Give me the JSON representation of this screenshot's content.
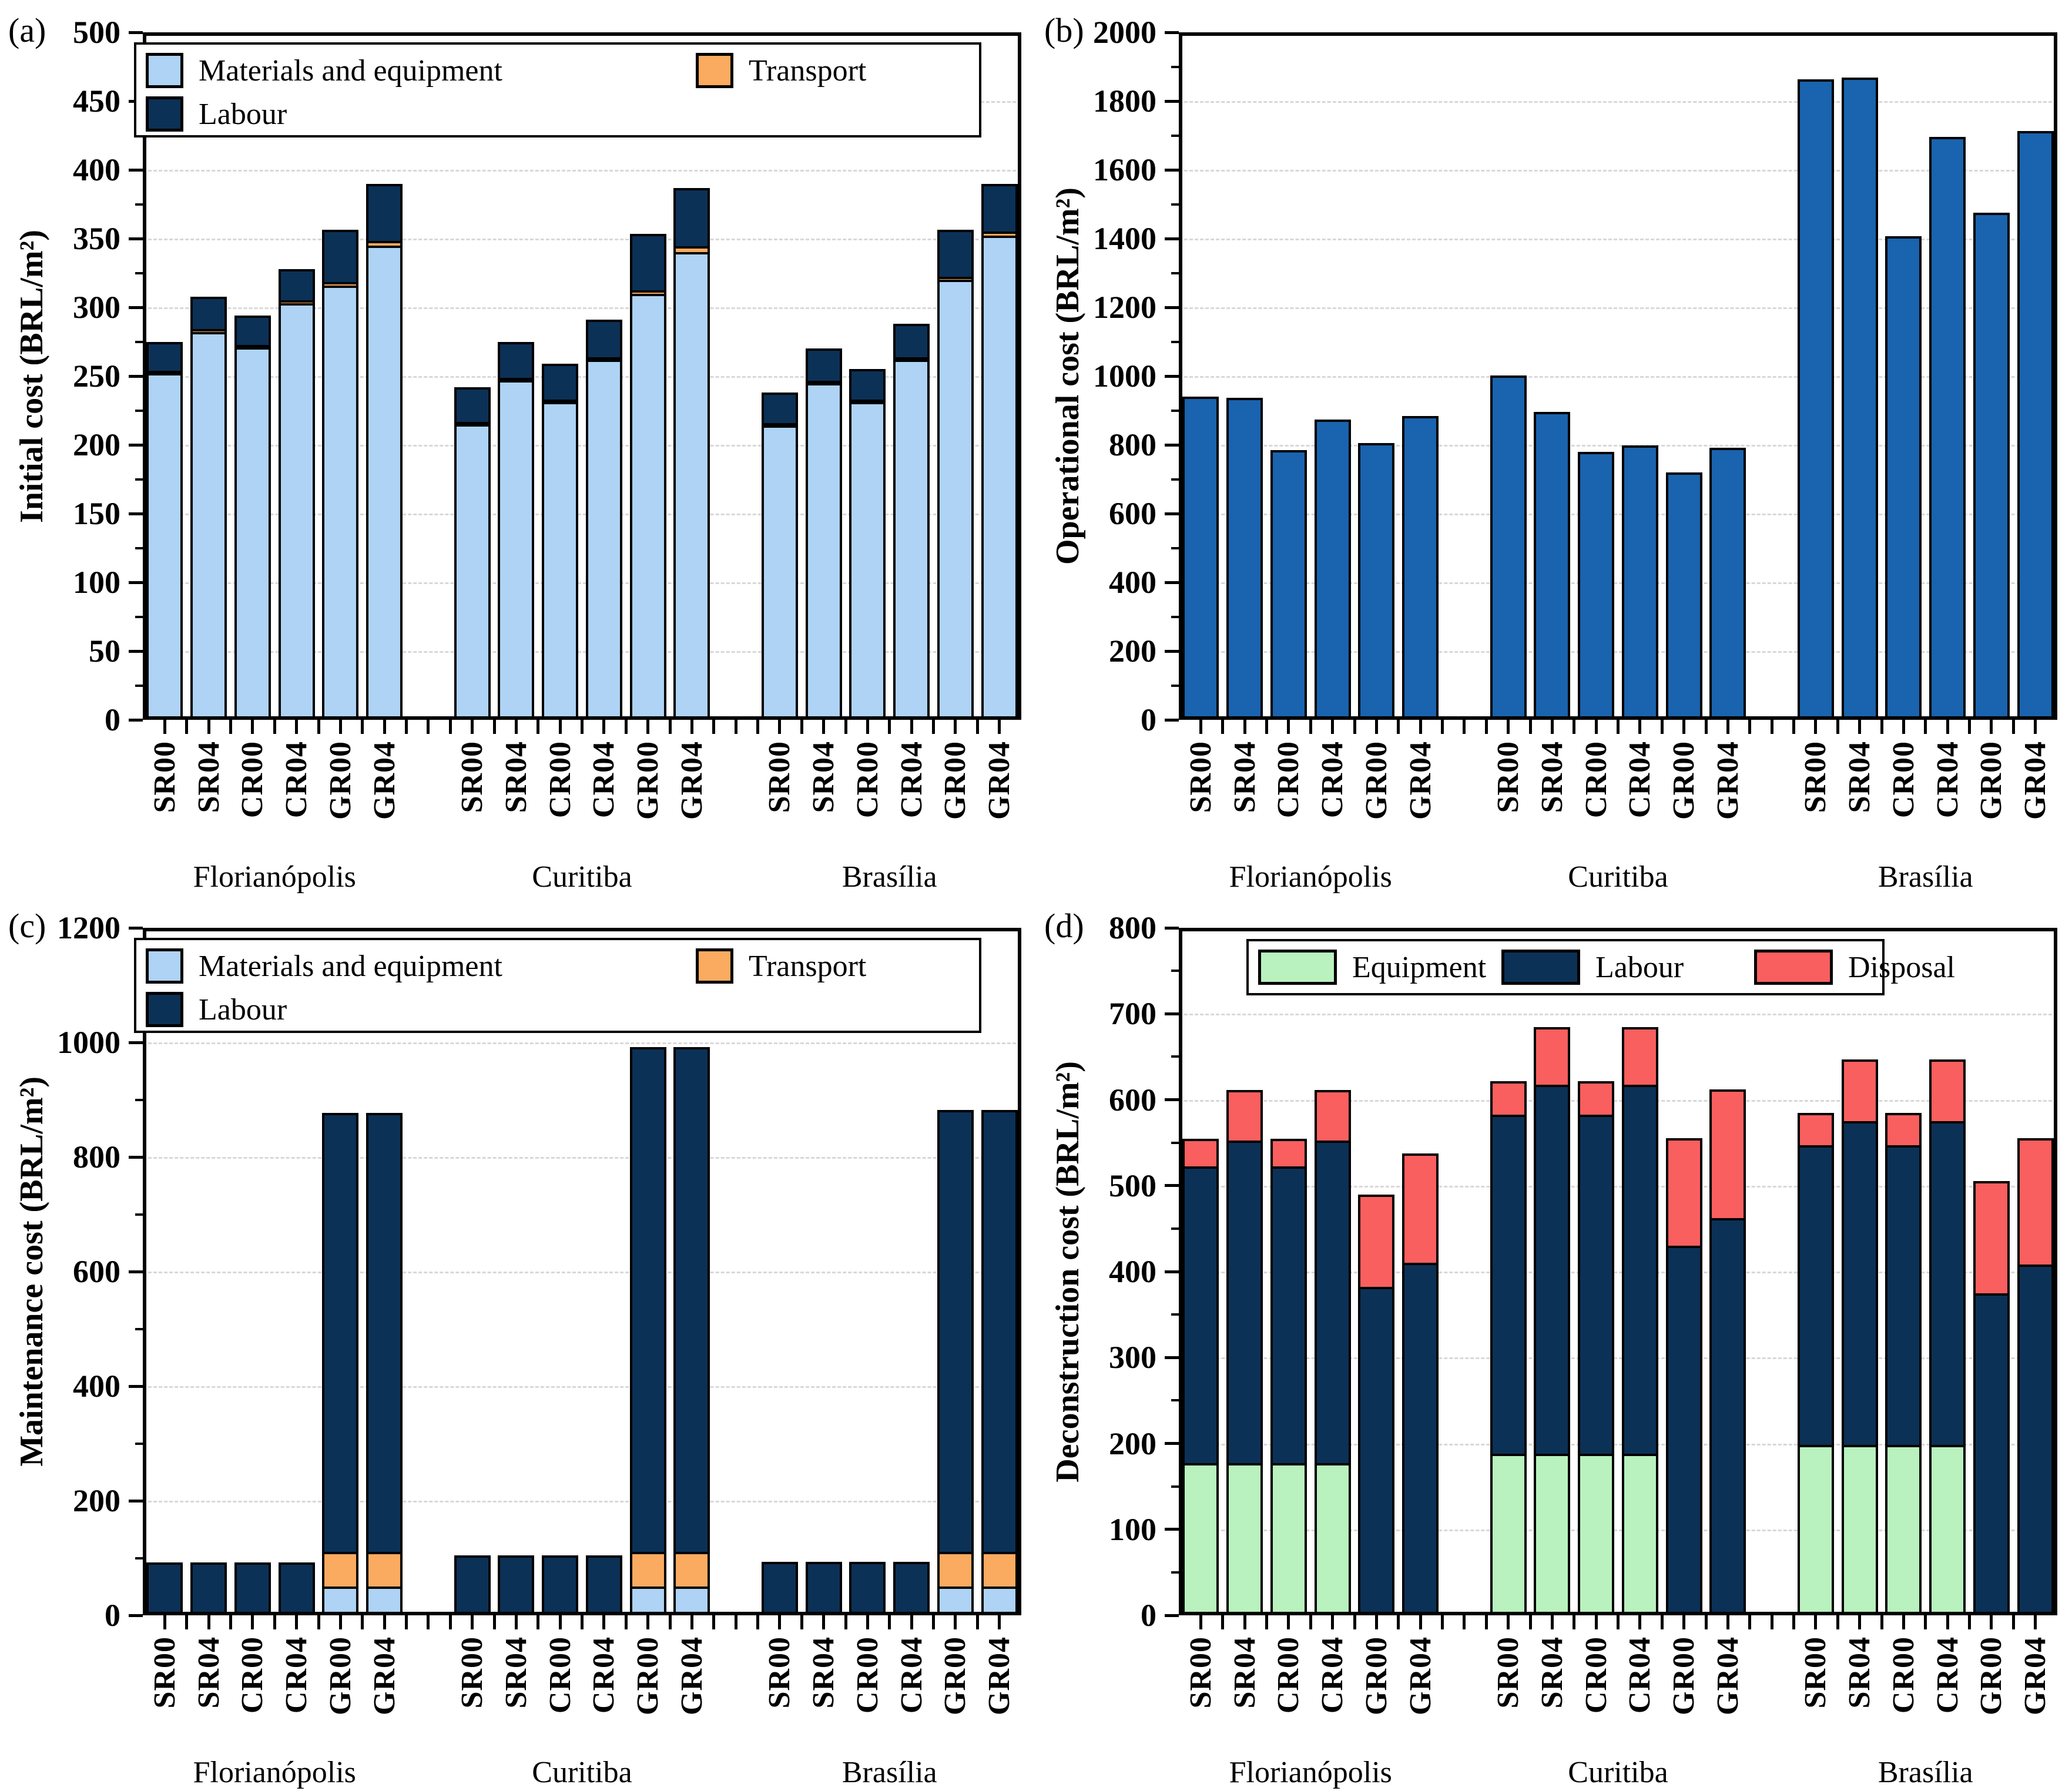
{
  "figure": {
    "background": "#ffffff",
    "grid_color": "#d8d8d8",
    "axis_color": "#000000"
  },
  "chart_data": [
    {
      "id": "a",
      "panel_label": "(a)",
      "type": "bar",
      "stacked": true,
      "ylabel": "Initial cost (BRL/m²)",
      "ylim": [
        0,
        500
      ],
      "ytick_step": 50,
      "yminor_step": 25,
      "ytick_labels": [
        "0",
        "50",
        "100",
        "150",
        "200",
        "250",
        "300",
        "350",
        "400",
        "450",
        "500"
      ],
      "grid": "dashed-horizontal",
      "legend_layout": "grid-2x2",
      "categories": [
        "SR00",
        "SR04",
        "CR00",
        "CR04",
        "GR00",
        "GR04"
      ],
      "segments": [
        {
          "key": "materials",
          "label": "Materials and equipment",
          "color": "#AED3F5"
        },
        {
          "key": "transport",
          "label": "Transport",
          "color": "#FAAB60"
        },
        {
          "key": "labour",
          "label": "Labour",
          "color": "#0C3156"
        }
      ],
      "legend_order": [
        "materials",
        "transport",
        "labour"
      ],
      "groups": [
        {
          "name": "Florianópolis",
          "series": {
            "materials": [
              252,
              282,
              271,
              303,
              316,
              345
            ],
            "transport": [
              2,
              4,
              2,
              4,
              4,
              5
            ],
            "labour": [
              23,
              25,
              23,
              24,
              40,
              43
            ]
          }
        },
        {
          "name": "Curitiba",
          "series": {
            "materials": [
              215,
              247,
              231,
              262,
              310,
              340
            ],
            "transport": [
              2,
              3,
              2,
              3,
              4,
              6
            ],
            "labour": [
              27,
              28,
              28,
              29,
              43,
              44
            ]
          }
        },
        {
          "name": "Brasília",
          "series": {
            "materials": [
              214,
              245,
              231,
              262,
              320,
              352
            ],
            "transport": [
              2,
              3,
              2,
              3,
              4,
              5
            ],
            "labour": [
              24,
              25,
              24,
              26,
              36,
              36
            ]
          }
        }
      ]
    },
    {
      "id": "b",
      "panel_label": "(b)",
      "type": "bar",
      "stacked": false,
      "ylabel": "Operational cost (BRL/m²)",
      "ylim": [
        0,
        2000
      ],
      "ytick_step": 200,
      "yminor_step": 100,
      "ytick_labels": [
        "0",
        "200",
        "400",
        "600",
        "800",
        "1000",
        "1200",
        "1400",
        "1600",
        "1800",
        "2000"
      ],
      "grid": "dashed-horizontal",
      "legend_layout": "none",
      "categories": [
        "SR00",
        "SR04",
        "CR00",
        "CR04",
        "GR00",
        "GR04"
      ],
      "segments": [
        {
          "key": "operational",
          "label": "Operational",
          "color": "#1A63AE"
        }
      ],
      "legend_order": [],
      "groups": [
        {
          "name": "Florianópolis",
          "series": {
            "operational": [
              940,
              936,
              785,
              874,
              805,
              884
            ]
          }
        },
        {
          "name": "Curitiba",
          "series": {
            "operational": [
              1002,
              895,
              779,
              799,
              720,
              791
            ]
          }
        },
        {
          "name": "Brasília",
          "series": {
            "operational": [
              1864,
              1868,
              1406,
              1695,
              1476,
              1712
            ]
          }
        }
      ]
    },
    {
      "id": "c",
      "panel_label": "(c)",
      "type": "bar",
      "stacked": true,
      "ylabel": "Maintenance cost (BRL/m²)",
      "ylim": [
        0,
        1200
      ],
      "ytick_step": 200,
      "yminor_step": 100,
      "ytick_labels": [
        "0",
        "200",
        "400",
        "600",
        "800",
        "1000",
        "1200"
      ],
      "grid": "dashed-horizontal",
      "legend_layout": "grid-2x2",
      "categories": [
        "SR00",
        "SR04",
        "CR00",
        "CR04",
        "GR00",
        "GR04"
      ],
      "segments": [
        {
          "key": "materials",
          "label": "Materials and equipment",
          "color": "#AED3F5"
        },
        {
          "key": "transport",
          "label": "Transport",
          "color": "#FAAB60"
        },
        {
          "key": "labour",
          "label": "Labour",
          "color": "#0C3156"
        }
      ],
      "legend_order": [
        "materials",
        "transport",
        "labour"
      ],
      "groups": [
        {
          "name": "Florianópolis",
          "series": {
            "materials": [
              0,
              0,
              0,
              0,
              50,
              50
            ],
            "transport": [
              0,
              0,
              0,
              0,
              65,
              65
            ],
            "labour": [
              92,
              92,
              92,
              92,
              770,
              770
            ]
          }
        },
        {
          "name": "Curitiba",
          "series": {
            "materials": [
              0,
              0,
              0,
              0,
              50,
              50
            ],
            "transport": [
              0,
              0,
              0,
              0,
              65,
              65
            ],
            "labour": [
              105,
              105,
              105,
              105,
              885,
              885
            ]
          }
        },
        {
          "name": "Brasília",
          "series": {
            "materials": [
              0,
              0,
              0,
              0,
              50,
              50
            ],
            "transport": [
              0,
              0,
              0,
              0,
              65,
              65
            ],
            "labour": [
              93,
              93,
              93,
              93,
              775,
              775
            ]
          }
        }
      ]
    },
    {
      "id": "d",
      "panel_label": "(d)",
      "type": "bar",
      "stacked": true,
      "ylabel": "Deconstruction cost (BRL/m²)",
      "ylim": [
        0,
        800
      ],
      "ytick_step": 100,
      "yminor_step": 50,
      "ytick_labels": [
        "0",
        "100",
        "200",
        "300",
        "400",
        "500",
        "600",
        "700",
        "800"
      ],
      "grid": "dashed-horizontal",
      "legend_layout": "row-3",
      "categories": [
        "SR00",
        "SR04",
        "CR00",
        "CR04",
        "GR00",
        "GR04"
      ],
      "segments": [
        {
          "key": "equipment",
          "label": "Equipment",
          "color": "#B9F2BE"
        },
        {
          "key": "labour",
          "label": "Labour",
          "color": "#0C3156"
        },
        {
          "key": "disposal",
          "label": "Disposal",
          "color": "#FA5F5F"
        }
      ],
      "legend_order": [
        "equipment",
        "labour",
        "disposal"
      ],
      "groups": [
        {
          "name": "Florianópolis",
          "series": {
            "equipment": [
              177,
              177,
              177,
              177,
              0,
              0
            ],
            "labour": [
              348,
              378,
              348,
              378,
              382,
              410
            ],
            "disposal": [
              35,
              62,
              35,
              62,
              110,
              130
            ]
          }
        },
        {
          "name": "Curitiba",
          "series": {
            "equipment": [
              188,
              188,
              188,
              188,
              0,
              0
            ],
            "labour": [
              397,
              432,
              397,
              432,
              430,
              462
            ],
            "disposal": [
              42,
              70,
              42,
              70,
              128,
              153
            ]
          }
        },
        {
          "name": "Brasília",
          "series": {
            "equipment": [
              198,
              198,
              198,
              198,
              0,
              0
            ],
            "labour": [
              352,
              380,
              352,
              380,
              375,
              408
            ],
            "disposal": [
              40,
              74,
              40,
              74,
              133,
              150
            ]
          }
        }
      ]
    }
  ]
}
